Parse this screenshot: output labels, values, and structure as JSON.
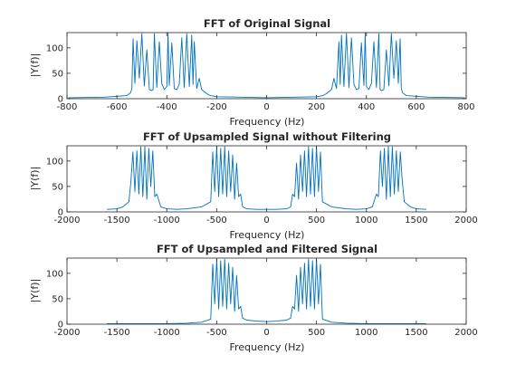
{
  "chart_data": [
    {
      "type": "line",
      "title": "FFT of Original Signal",
      "xlabel": "Frequency (Hz)",
      "ylabel": "|Y(f)|",
      "xlim": [
        -800,
        800
      ],
      "ylim": [
        0,
        130
      ],
      "xticks": [
        "-800",
        "-600",
        "-400",
        "-200",
        "0",
        "200",
        "400",
        "600",
        "800"
      ],
      "yticks": [
        "0",
        "50",
        "100"
      ],
      "grid": false,
      "series_color": "#0072BD",
      "series": [
        {
          "x": [
            -795,
            -650,
            -560,
            -545,
            -540,
            -535,
            -528,
            -520,
            -510,
            -500,
            -490,
            -480,
            -470,
            -460,
            -455,
            -450,
            -440,
            -430,
            -420,
            -410,
            -400,
            -395,
            -390,
            -380,
            -370,
            -360,
            -350,
            -340,
            -330,
            -320,
            -310,
            -300,
            -295,
            -290,
            -280,
            -270,
            -260,
            -250,
            -240,
            -225,
            -200,
            0,
            200,
            225,
            240,
            250,
            260,
            270,
            280,
            290,
            295,
            300,
            310,
            320,
            330,
            340,
            350,
            360,
            370,
            380,
            390,
            395,
            400,
            410,
            420,
            430,
            440,
            450,
            455,
            460,
            470,
            480,
            490,
            500,
            510,
            520,
            528,
            535,
            540,
            545,
            560,
            650,
            795
          ],
          "y": [
            2,
            3,
            6,
            12,
            20,
            118,
            30,
            114,
            40,
            128,
            25,
            96,
            18,
            16,
            18,
            128,
            22,
            112,
            30,
            18,
            24,
            130,
            26,
            110,
            20,
            18,
            28,
            120,
            22,
            128,
            24,
            125,
            28,
            112,
            20,
            40,
            18,
            14,
            10,
            6,
            4,
            2,
            4,
            6,
            10,
            14,
            18,
            40,
            20,
            112,
            28,
            125,
            24,
            128,
            22,
            120,
            28,
            18,
            20,
            110,
            26,
            130,
            24,
            18,
            30,
            112,
            22,
            128,
            18,
            16,
            18,
            96,
            25,
            128,
            40,
            114,
            30,
            118,
            20,
            12,
            6,
            3,
            2
          ]
        }
      ]
    },
    {
      "type": "line",
      "title": "FFT of Upsampled Signal without Filtering",
      "xlabel": "Frequency (Hz)",
      "ylabel": "|Y(f)|",
      "xlim": [
        -2000,
        2000
      ],
      "ylim": [
        0,
        130
      ],
      "xticks": [
        "-2000",
        "-1500",
        "-1000",
        "-500",
        "0",
        "500",
        "1000",
        "1500",
        "2000"
      ],
      "yticks": [
        "0",
        "50",
        "100"
      ],
      "grid": false,
      "series_color": "#0072BD",
      "series": [
        {
          "x": [
            -1600,
            -1500,
            -1440,
            -1380,
            -1360,
            -1340,
            -1320,
            -1300,
            -1280,
            -1260,
            -1240,
            -1220,
            -1200,
            -1180,
            -1160,
            -1140,
            -1120,
            -1100,
            -1060,
            -1000,
            -900,
            -800,
            -650,
            -560,
            -540,
            -520,
            -500,
            -480,
            -460,
            -440,
            -420,
            -400,
            -380,
            -360,
            -340,
            -320,
            -300,
            -280,
            -260,
            -240,
            -200,
            -100,
            0,
            100,
            200,
            240,
            260,
            280,
            300,
            320,
            340,
            360,
            380,
            400,
            420,
            440,
            460,
            480,
            500,
            520,
            540,
            560,
            650,
            800,
            900,
            1000,
            1060,
            1100,
            1120,
            1140,
            1160,
            1180,
            1200,
            1220,
            1240,
            1260,
            1280,
            1300,
            1320,
            1340,
            1360,
            1380,
            1440,
            1500,
            1600
          ],
          "y": [
            5,
            6,
            10,
            20,
            60,
            118,
            40,
            120,
            35,
            128,
            30,
            128,
            25,
            125,
            50,
            120,
            30,
            35,
            10,
            6,
            5,
            6,
            10,
            20,
            118,
            40,
            128,
            30,
            125,
            35,
            128,
            30,
            120,
            40,
            112,
            25,
            96,
            30,
            35,
            10,
            6,
            5,
            5,
            5,
            6,
            10,
            35,
            30,
            96,
            25,
            112,
            40,
            120,
            30,
            128,
            35,
            125,
            30,
            128,
            40,
            118,
            20,
            10,
            6,
            5,
            6,
            10,
            35,
            30,
            120,
            50,
            125,
            25,
            128,
            30,
            128,
            35,
            120,
            40,
            118,
            60,
            20,
            10,
            6,
            5
          ]
        }
      ]
    },
    {
      "type": "line",
      "title": "FFT of Upsampled and Filtered Signal",
      "xlabel": "Frequency (Hz)",
      "ylabel": "|Y(f)|",
      "xlim": [
        -2000,
        2000
      ],
      "ylim": [
        0,
        130
      ],
      "xticks": [
        "-2000",
        "-1500",
        "-1000",
        "-500",
        "0",
        "500",
        "1000",
        "1500",
        "2000"
      ],
      "yticks": [
        "0",
        "50",
        "100"
      ],
      "grid": false,
      "series_color": "#0072BD",
      "series": [
        {
          "x": [
            -1600,
            -1200,
            -1000,
            -800,
            -650,
            -560,
            -540,
            -520,
            -500,
            -480,
            -460,
            -440,
            -420,
            -400,
            -380,
            -360,
            -340,
            -320,
            -300,
            -280,
            -260,
            -240,
            -200,
            -100,
            0,
            100,
            200,
            240,
            260,
            280,
            300,
            320,
            340,
            360,
            380,
            400,
            420,
            440,
            460,
            480,
            500,
            520,
            540,
            560,
            650,
            800,
            1000,
            1200,
            1600
          ],
          "y": [
            1,
            1,
            1,
            2,
            4,
            10,
            118,
            40,
            128,
            30,
            125,
            35,
            128,
            30,
            120,
            40,
            112,
            25,
            96,
            30,
            35,
            12,
            8,
            6,
            5,
            6,
            8,
            12,
            35,
            30,
            96,
            25,
            112,
            40,
            120,
            30,
            128,
            35,
            125,
            30,
            128,
            40,
            118,
            10,
            4,
            2,
            1,
            1,
            1
          ]
        }
      ]
    }
  ]
}
